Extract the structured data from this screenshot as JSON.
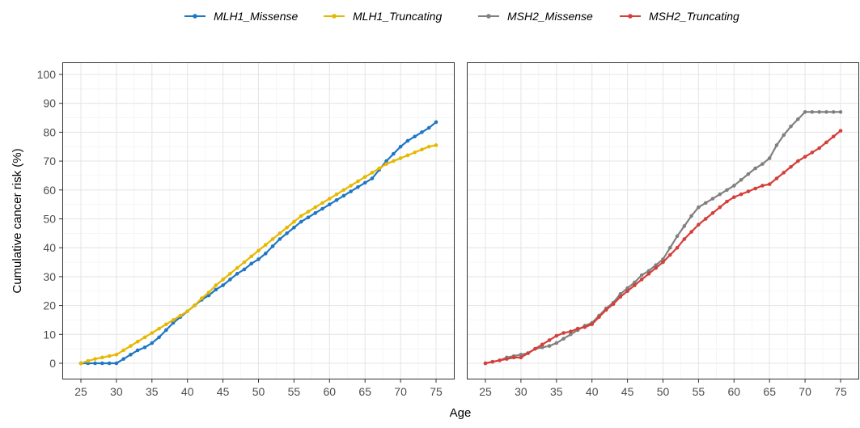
{
  "chart_data": {
    "type": "line",
    "xlabel": "Age",
    "ylabel": "Cumulative cancer risk (%)",
    "xlim": [
      25,
      75
    ],
    "ylim": [
      0,
      100
    ],
    "x_ticks": [
      25,
      30,
      35,
      40,
      45,
      50,
      55,
      60,
      65,
      70,
      75
    ],
    "y_ticks": [
      0,
      10,
      20,
      30,
      40,
      50,
      60,
      70,
      80,
      90,
      100
    ],
    "grid": true,
    "legend_position": "top",
    "x": [
      25,
      26,
      27,
      28,
      29,
      30,
      31,
      32,
      33,
      34,
      35,
      36,
      37,
      38,
      39,
      40,
      41,
      42,
      43,
      44,
      45,
      46,
      47,
      48,
      49,
      50,
      51,
      52,
      53,
      54,
      55,
      56,
      57,
      58,
      59,
      60,
      61,
      62,
      63,
      64,
      65,
      66,
      67,
      68,
      69,
      70,
      71,
      72,
      73,
      74,
      75
    ],
    "panels": [
      {
        "series": [
          {
            "name": "MLH1_Missense",
            "color": "#1f77c4",
            "values": [
              0,
              0,
              0,
              0,
              0,
              0,
              1.5,
              3,
              4.5,
              5.5,
              7,
              9,
              11.5,
              14,
              16,
              18,
              20,
              22,
              23.5,
              25.5,
              27,
              29,
              31,
              32.5,
              34.5,
              36,
              38,
              40.5,
              43,
              45,
              47,
              49,
              50.5,
              52,
              53.5,
              55,
              56.5,
              58,
              59.5,
              61,
              62.5,
              64,
              67,
              70,
              72.5,
              75,
              77,
              78.5,
              80,
              81.5,
              83.5
            ]
          },
          {
            "name": "MLH1_Truncating",
            "color": "#e6b800",
            "values": [
              0,
              0.8,
              1.5,
              2,
              2.5,
              3,
              4.5,
              6,
              7.5,
              9,
              10.5,
              12,
              13.5,
              15,
              16.5,
              18,
              20,
              22.5,
              24.5,
              27,
              29,
              31,
              33,
              35,
              37,
              39,
              41,
              43,
              45,
              47,
              49,
              51,
              52.5,
              54,
              55.5,
              57,
              58.5,
              60,
              61.5,
              63,
              64.5,
              66,
              67.5,
              69,
              70,
              71,
              72,
              73,
              74,
              75,
              75.5
            ]
          }
        ]
      },
      {
        "series": [
          {
            "name": "MSH2_Missense",
            "color": "#808080",
            "values": [
              0,
              0.5,
              1,
              2,
              2.5,
              3,
              3.5,
              5,
              5.5,
              6,
              7,
              8.5,
              10,
              11.5,
              13,
              14,
              16.5,
              19,
              21,
              24,
              26,
              28,
              30.5,
              32,
              34,
              36,
              40,
              44,
              47.5,
              51,
              54,
              55.5,
              57,
              58.5,
              60,
              61.5,
              63.5,
              65.5,
              67.5,
              69,
              71,
              75.5,
              79,
              82,
              84.5,
              87,
              87,
              87,
              87,
              87,
              87
            ]
          },
          {
            "name": "MSH2_Truncating",
            "color": "#d43f3a",
            "values": [
              0,
              0.5,
              1,
              1.5,
              2,
              2,
              3.5,
              5,
              6.5,
              8,
              9.5,
              10.5,
              11,
              12,
              12.5,
              13.5,
              16,
              18.5,
              20.5,
              23,
              25,
              27,
              29,
              31,
              33,
              35,
              37.5,
              40,
              43,
              45.5,
              48,
              50,
              52,
              54,
              56,
              57.5,
              58.5,
              59.5,
              60.5,
              61.5,
              62,
              64,
              66,
              68,
              70,
              71.5,
              73,
              74.5,
              76.5,
              78.5,
              80.5
            ]
          }
        ]
      }
    ]
  }
}
